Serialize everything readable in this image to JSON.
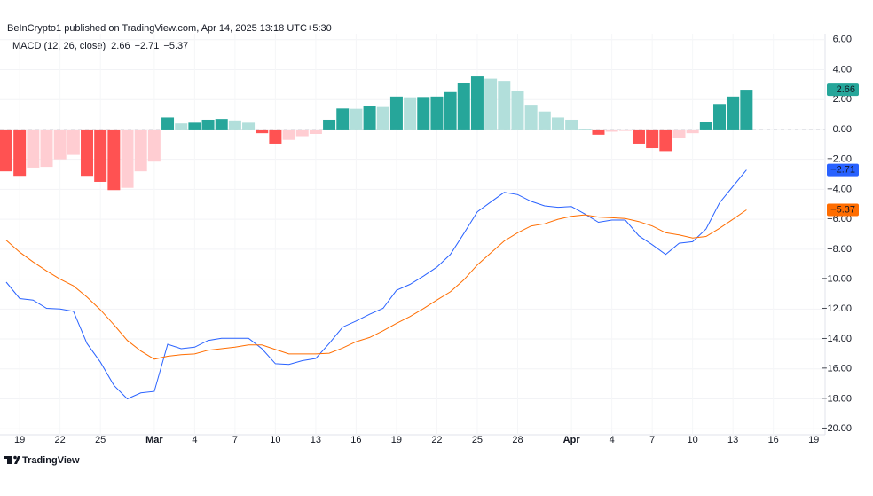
{
  "header": {
    "published": "BeInCrypto1 published on TradingView.com, Apr 14, 2025 13:18 UTC+5:30"
  },
  "footer": {
    "brand": "TradingView"
  },
  "chart_data": {
    "type": "macd",
    "indicator": "MACD (12, 26, close)",
    "categories": [
      null,
      "19",
      null,
      null,
      "22",
      null,
      null,
      "25",
      null,
      null,
      null,
      "Mar",
      null,
      null,
      "4",
      null,
      null,
      "7",
      null,
      null,
      "10",
      null,
      null,
      "13",
      null,
      null,
      "16",
      null,
      null,
      "19",
      null,
      null,
      "22",
      null,
      null,
      "25",
      null,
      null,
      "28",
      null,
      null,
      null,
      "Apr",
      null,
      null,
      "4",
      null,
      null,
      "7",
      null,
      null,
      "10",
      null,
      null,
      "13",
      null,
      null,
      "16",
      null,
      null,
      "19",
      null
    ],
    "ylim": [
      -20.4,
      6.4
    ],
    "yticks": [
      {
        "value": 6,
        "label": "6.00"
      },
      {
        "value": 4,
        "label": "4.00"
      },
      {
        "value": 2,
        "label": "2.00"
      },
      {
        "value": 0,
        "label": "0.00"
      },
      {
        "value": -2,
        "label": "−2.00"
      },
      {
        "value": -4,
        "label": "−4.00"
      },
      {
        "value": -6,
        "label": "−6.00"
      },
      {
        "value": -8,
        "label": "−8.00"
      },
      {
        "value": -10,
        "label": "−10.00"
      },
      {
        "value": -12,
        "label": "−12.00"
      },
      {
        "value": -14,
        "label": "−14.00"
      },
      {
        "value": -16,
        "label": "−16.00"
      },
      {
        "value": -18,
        "label": "−18.00"
      },
      {
        "value": -20,
        "label": "−20.00"
      }
    ],
    "grid": true,
    "zero_line": true,
    "series": [
      {
        "type": "histogram",
        "color": "#26a69a",
        "color_positive_rising": "#26a69a",
        "color_positive_falling": "#b2dfdb",
        "color_negative_falling": "#ff5252",
        "color_negative_rising": "#ffcdd2",
        "last_value_label": "2.66",
        "values": [
          -2.8,
          -3.1,
          -2.55,
          -2.5,
          -2.0,
          -1.7,
          -3.1,
          -3.5,
          -4.05,
          -3.9,
          -2.8,
          -2.15,
          0.8,
          0.4,
          0.45,
          0.65,
          0.7,
          0.6,
          0.45,
          -0.25,
          -0.95,
          -0.7,
          -0.45,
          -0.3,
          0.65,
          1.4,
          1.38,
          1.55,
          1.5,
          2.2,
          2.15,
          2.17,
          2.2,
          2.5,
          3.1,
          3.55,
          3.4,
          3.25,
          2.55,
          1.65,
          1.2,
          0.8,
          0.65,
          0.05,
          -0.35,
          -0.15,
          -0.1,
          -0.95,
          -1.25,
          -1.45,
          -0.55,
          -0.25,
          0.5,
          1.7,
          2.2,
          2.66,
          null,
          null,
          null,
          null,
          null,
          null
        ]
      },
      {
        "type": "line",
        "color": "#2962ff",
        "last_value_label": "−2.71",
        "values": [
          -10.2,
          -11.3,
          -11.4,
          -11.95,
          -12.0,
          -12.15,
          -14.3,
          -15.55,
          -17.1,
          -18.0,
          -17.6,
          -17.5,
          -14.35,
          -14.65,
          -14.55,
          -14.1,
          -13.95,
          -13.95,
          -13.95,
          -14.65,
          -15.65,
          -15.7,
          -15.45,
          -15.3,
          -14.3,
          -13.2,
          -12.8,
          -12.35,
          -11.95,
          -10.75,
          -10.35,
          -9.8,
          -9.2,
          -8.35,
          -6.95,
          -5.5,
          -4.85,
          -4.2,
          -4.35,
          -4.8,
          -5.1,
          -5.2,
          -5.15,
          -5.65,
          -6.2,
          -6.05,
          -6.05,
          -7.1,
          -7.7,
          -8.35,
          -7.6,
          -7.5,
          -6.65,
          -4.9,
          -3.8,
          -2.71,
          null,
          null,
          null,
          null,
          null,
          null
        ]
      },
      {
        "type": "line",
        "color": "#ff6d00",
        "last_value_label": "−5.37",
        "values": [
          -7.4,
          -8.2,
          -8.85,
          -9.45,
          -10.0,
          -10.45,
          -11.2,
          -12.05,
          -13.05,
          -14.1,
          -14.8,
          -15.35,
          -15.15,
          -15.05,
          -15.0,
          -14.75,
          -14.65,
          -14.55,
          -14.4,
          -14.4,
          -14.7,
          -15.0,
          -15.0,
          -15.0,
          -14.95,
          -14.6,
          -14.18,
          -13.9,
          -13.45,
          -12.95,
          -12.5,
          -11.97,
          -11.4,
          -10.85,
          -10.05,
          -9.05,
          -8.25,
          -7.45,
          -6.9,
          -6.45,
          -6.3,
          -6.0,
          -5.8,
          -5.7,
          -5.85,
          -5.9,
          -5.95,
          -6.15,
          -6.45,
          -6.9,
          -7.05,
          -7.25,
          -7.15,
          -6.6,
          -6.0,
          -5.37,
          null,
          null,
          null,
          null,
          null,
          null
        ]
      }
    ]
  }
}
